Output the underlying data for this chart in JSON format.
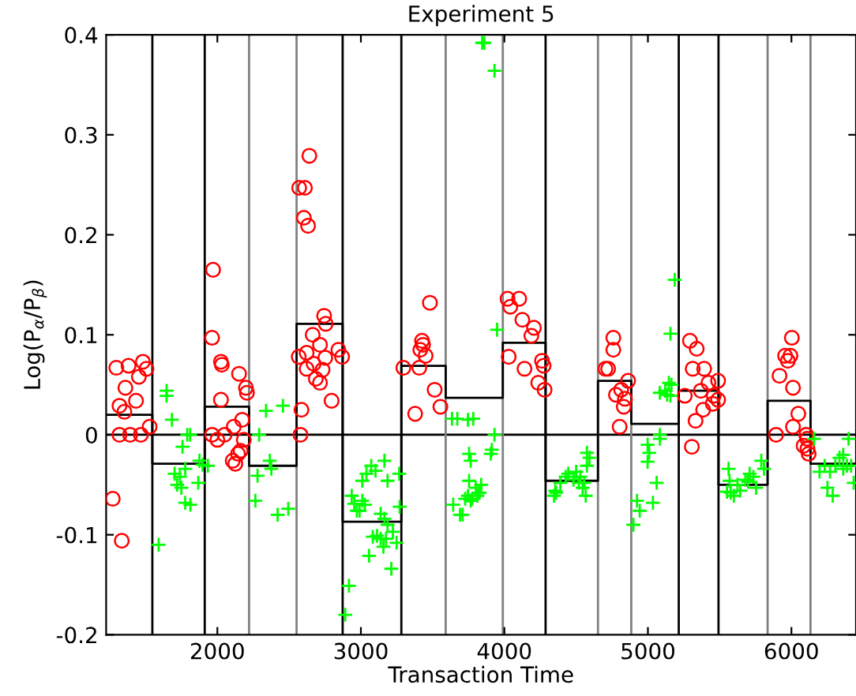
{
  "chart_data": {
    "type": "scatter",
    "title": "Experiment 5",
    "xlabel": "Transaction Time",
    "ylabel": "Log(P$_{α}$/P$_{β}$)",
    "xlim": [
      1225,
      6450
    ],
    "ylim": [
      -0.2,
      0.4
    ],
    "xticks": [
      2000,
      3000,
      4000,
      5000,
      6000
    ],
    "yticks": [
      -0.2,
      -0.1,
      0,
      0.1,
      0.2,
      0.3,
      0.4
    ],
    "grid": false,
    "legend": false,
    "series": [
      {
        "marker": "circle",
        "color": "#ff0000",
        "x": [
          1271,
          1334,
          1296,
          1381,
          1481,
          1359,
          1318,
          1352,
          1433,
          1453,
          1506,
          1528,
          1318,
          1392,
          1467,
          1963,
          2025,
          2031,
          2025,
          1963,
          2000,
          2050,
          2114,
          2151,
          2199,
          2206,
          2173,
          2184,
          2162,
          2144,
          2107,
          2125,
          1970,
          2586,
          2579,
          2641,
          2570,
          2610,
          2603,
          2632,
          2744,
          2755,
          2664,
          2567,
          2622,
          2671,
          2715,
          2796,
          2686,
          2715,
          2733,
          2843,
          2869,
          2752,
          2622,
          3481,
          3426,
          3296,
          3378,
          3407,
          3414,
          3433,
          3451,
          3514,
          3554,
          4022,
          4103,
          4041,
          4125,
          4206,
          4188,
          4030,
          4140,
          4262,
          4273,
          4236,
          4280,
          4759,
          4759,
          4704,
          4723,
          4862,
          4814,
          4777,
          4840,
          4832,
          4803,
          5293,
          5340,
          5312,
          5392,
          5422,
          5489,
          5369,
          5332,
          5306,
          5459,
          5489,
          5452,
          5257,
          5385,
          6003,
          5956,
          5993,
          5975,
          5917,
          6011,
          6048,
          6011,
          5893,
          6103,
          6110,
          6085,
          6120,
          6112
        ],
        "values": [
          -0.064,
          -0.106,
          0.067,
          0.069,
          0.073,
          0.047,
          0.029,
          0.023,
          0.034,
          0.058,
          0.066,
          0.008,
          0,
          0,
          0,
          0.097,
          0.073,
          0.07,
          0.035,
          0,
          -0.005,
          0,
          0.008,
          0.061,
          0.047,
          0.042,
          0.015,
          -0.005,
          -0.016,
          -0.019,
          -0.026,
          -0.029,
          0.165,
          0.025,
          0,
          0.279,
          0.247,
          0.247,
          0.217,
          0.209,
          0.119,
          0.111,
          0.1,
          0.078,
          0.082,
          0.071,
          0.09,
          0.034,
          0.056,
          0.052,
          0.065,
          0.085,
          0.078,
          0.077,
          0.066,
          0.132,
          0.094,
          0.067,
          0.021,
          0.067,
          0.085,
          0.09,
          0.079,
          0.045,
          0.028,
          0.136,
          0.136,
          0.128,
          0.115,
          0.107,
          0.099,
          0.078,
          0.066,
          0.074,
          0.069,
          0.052,
          0.045,
          0.097,
          0.085,
          0.066,
          0.066,
          0.054,
          0.045,
          0.04,
          0.036,
          0.028,
          0.008,
          0.094,
          0.086,
          0.066,
          0.066,
          0.052,
          0.054,
          0.044,
          0.014,
          -0.012,
          0.039,
          0.035,
          0.031,
          0.039,
          0.025,
          0.097,
          0.079,
          0.079,
          0.074,
          0.059,
          0.047,
          0.021,
          0.008,
          0,
          0,
          -0.004,
          -0.011,
          -0.019,
          -0.014
        ]
      },
      {
        "marker": "cross",
        "color": "#00ff00",
        "x": [
          1646,
          1646,
          1683,
          1591,
          1790,
          1810,
          1757,
          1776,
          1702,
          1739,
          1720,
          1749,
          1867,
          1776,
          1812,
          1875,
          1897,
          1934,
          2339,
          2457,
          2291,
          2280,
          2365,
          2376,
          2265,
          2420,
          2494,
          2917,
          2891,
          2936,
          2954,
          2972,
          2991,
          3010,
          3028,
          3010,
          3039,
          3072,
          3102,
          3164,
          3186,
          3267,
          3138,
          3164,
          3270,
          3083,
          3113,
          3138,
          3157,
          3175,
          3223,
          3249,
          3212,
          3057,
          3186,
          3635,
          3672,
          3783,
          3754,
          3765,
          3754,
          3801,
          3812,
          3827,
          3838,
          3643,
          3709,
          3765,
          3776,
          3746,
          3746,
          3912,
          3905,
          3931,
          3727,
          3820,
          3691,
          3845,
          3860,
          3931,
          3949,
          4346,
          4361,
          4427,
          4445,
          4482,
          4500,
          4519,
          4530,
          4556,
          4575,
          4593,
          4575,
          4545,
          4567,
          4390,
          4354,
          4998,
          5009,
          4998,
          5061,
          5035,
          4924,
          4943,
          4899,
          5083,
          5083,
          5120,
          5146,
          5164,
          5134,
          5157,
          5083,
          5157,
          5187,
          5562,
          5569,
          5551,
          5599,
          5624,
          5679,
          5709,
          5735,
          5754,
          5790,
          5809,
          5577,
          5643,
          5698,
          6158,
          6196,
          6232,
          6269,
          6306,
          6335,
          6361,
          6387,
          6416,
          6434,
          6251,
          6288,
          6398,
          6361
        ],
        "values": [
          0.044,
          0.039,
          0.015,
          -0.11,
          0,
          0,
          -0.012,
          -0.034,
          -0.039,
          -0.042,
          -0.05,
          -0.053,
          -0.048,
          -0.068,
          -0.07,
          -0.026,
          -0.03,
          -0.031,
          0.024,
          0.029,
          0,
          -0.041,
          -0.026,
          -0.034,
          -0.066,
          -0.08,
          -0.074,
          -0.151,
          -0.18,
          -0.061,
          -0.069,
          -0.076,
          -0.076,
          -0.066,
          -0.07,
          -0.046,
          -0.039,
          -0.031,
          -0.036,
          -0.026,
          -0.046,
          -0.039,
          -0.079,
          -0.084,
          -0.072,
          -0.102,
          -0.101,
          -0.104,
          -0.112,
          -0.104,
          -0.097,
          -0.108,
          -0.134,
          -0.121,
          -0.09,
          0.016,
          0.016,
          0.016,
          -0.019,
          -0.026,
          -0.046,
          -0.053,
          -0.061,
          -0.058,
          -0.05,
          -0.07,
          -0.08,
          -0.066,
          -0.064,
          -0.061,
          0.015,
          -0.015,
          -0.019,
          0,
          -0.064,
          -0.058,
          -0.08,
          0.392,
          0.392,
          0.364,
          0.105,
          -0.061,
          -0.058,
          -0.042,
          -0.039,
          -0.045,
          -0.037,
          -0.048,
          -0.042,
          -0.048,
          -0.031,
          -0.023,
          -0.018,
          -0.053,
          -0.061,
          -0.048,
          -0.056,
          -0.01,
          -0.018,
          -0.027,
          -0.048,
          -0.068,
          -0.066,
          -0.076,
          -0.09,
          -0.004,
          0,
          0.044,
          0.052,
          0.05,
          0.04,
          0.039,
          0.042,
          0.101,
          0.155,
          -0.034,
          -0.046,
          -0.057,
          -0.061,
          -0.05,
          -0.045,
          -0.039,
          -0.042,
          -0.053,
          -0.026,
          -0.034,
          -0.058,
          -0.056,
          -0.047,
          -0.004,
          -0.037,
          -0.031,
          -0.037,
          -0.031,
          -0.023,
          -0.034,
          -0.031,
          -0.031,
          -0.048,
          -0.053,
          -0.061,
          -0.004,
          -0.02
        ]
      },
      {
        "type": "step",
        "marker": "none",
        "color": "#000000",
        "x": [
          1225,
          1547,
          1912,
          2221,
          2552,
          2873,
          3282,
          3591,
          3989,
          4287,
          4652,
          4884,
          5215,
          5492,
          5834,
          6133,
          6450
        ],
        "values": [
          0.02,
          -0.029,
          0.028,
          -0.031,
          0.111,
          -0.087,
          0.069,
          0.037,
          0.092,
          -0.046,
          0.054,
          0.011,
          0.044,
          -0.05,
          0.034,
          -0.029,
          -0.029
        ]
      }
    ],
    "ref_lines": [
      {
        "axis": "y",
        "value": 0,
        "color": "#000000"
      },
      {
        "axis": "x",
        "value": 1547,
        "color": "#000000"
      },
      {
        "axis": "x",
        "value": 1912,
        "color": "#000000"
      },
      {
        "axis": "x",
        "value": 2221,
        "color": "#808080"
      },
      {
        "axis": "x",
        "value": 2552,
        "color": "#808080"
      },
      {
        "axis": "x",
        "value": 2873,
        "color": "#000000"
      },
      {
        "axis": "x",
        "value": 3282,
        "color": "#000000"
      },
      {
        "axis": "x",
        "value": 3591,
        "color": "#808080"
      },
      {
        "axis": "x",
        "value": 3989,
        "color": "#808080"
      },
      {
        "axis": "x",
        "value": 4287,
        "color": "#000000"
      },
      {
        "axis": "x",
        "value": 4652,
        "color": "#808080"
      },
      {
        "axis": "x",
        "value": 4884,
        "color": "#808080"
      },
      {
        "axis": "x",
        "value": 5215,
        "color": "#000000"
      },
      {
        "axis": "x",
        "value": 5492,
        "color": "#000000"
      },
      {
        "axis": "x",
        "value": 5834,
        "color": "#808080"
      },
      {
        "axis": "x",
        "value": 6133,
        "color": "#808080"
      }
    ]
  }
}
